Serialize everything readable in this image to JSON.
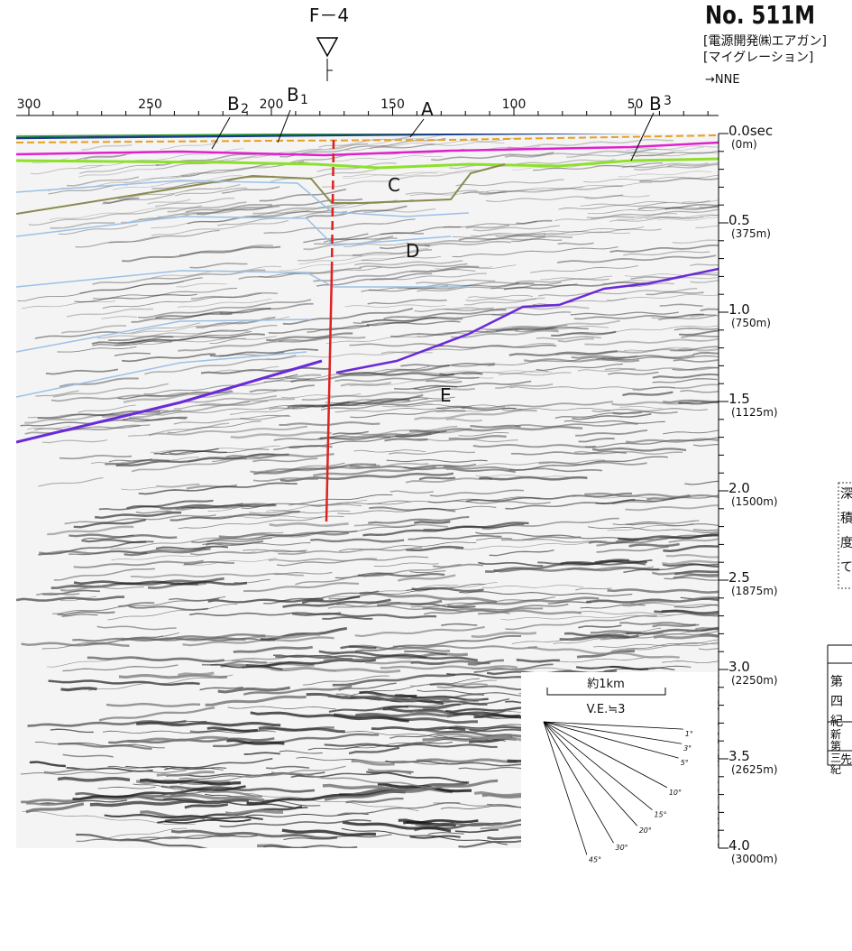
{
  "header": {
    "fault_label": "F－4",
    "line_no": "No. 511M",
    "source": "[電源開発㈱エアガン]",
    "processing": "[マイグレーション]",
    "direction": "→NNE"
  },
  "top_axis": {
    "labels": [
      "300",
      "250",
      "200",
      "150",
      "100",
      "50"
    ]
  },
  "horizon_labels": [
    {
      "letter": "A"
    },
    {
      "letter": "B",
      "subscript": "2"
    },
    {
      "letter": "B",
      "subscript": "1"
    },
    {
      "letter": "B",
      "subscript": "3"
    },
    {
      "letter": "C"
    },
    {
      "letter": "D"
    },
    {
      "letter": "E"
    }
  ],
  "depth_axis": [
    {
      "time": "0.0sec",
      "depth": "(0m)"
    },
    {
      "time": "0.5",
      "depth": "(375m)"
    },
    {
      "time": "1.0",
      "depth": "(750m)"
    },
    {
      "time": "1.5",
      "depth": "(1125m)"
    },
    {
      "time": "2.0",
      "depth": "(1500m)"
    },
    {
      "time": "2.5",
      "depth": "(1875m)"
    },
    {
      "time": "3.0",
      "depth": "(2250m)"
    },
    {
      "time": "3.5",
      "depth": "(2625m)"
    },
    {
      "time": "4.0",
      "depth": "(3000m)"
    }
  ],
  "scale": {
    "length": "約1km",
    "vertical_exaggeration": "V.E.≒3",
    "angles": [
      "1°",
      "3°",
      "5°",
      "10°",
      "15°",
      "20°",
      "30°",
      "45°"
    ]
  },
  "side_note": {
    "chars": [
      "深",
      "積",
      "度",
      "て"
    ]
  },
  "legend_table": {
    "quaternary": [
      "第",
      "四",
      "紀"
    ],
    "neogene": [
      "新",
      "第",
      "三",
      "紀"
    ],
    "pre": "先"
  }
}
